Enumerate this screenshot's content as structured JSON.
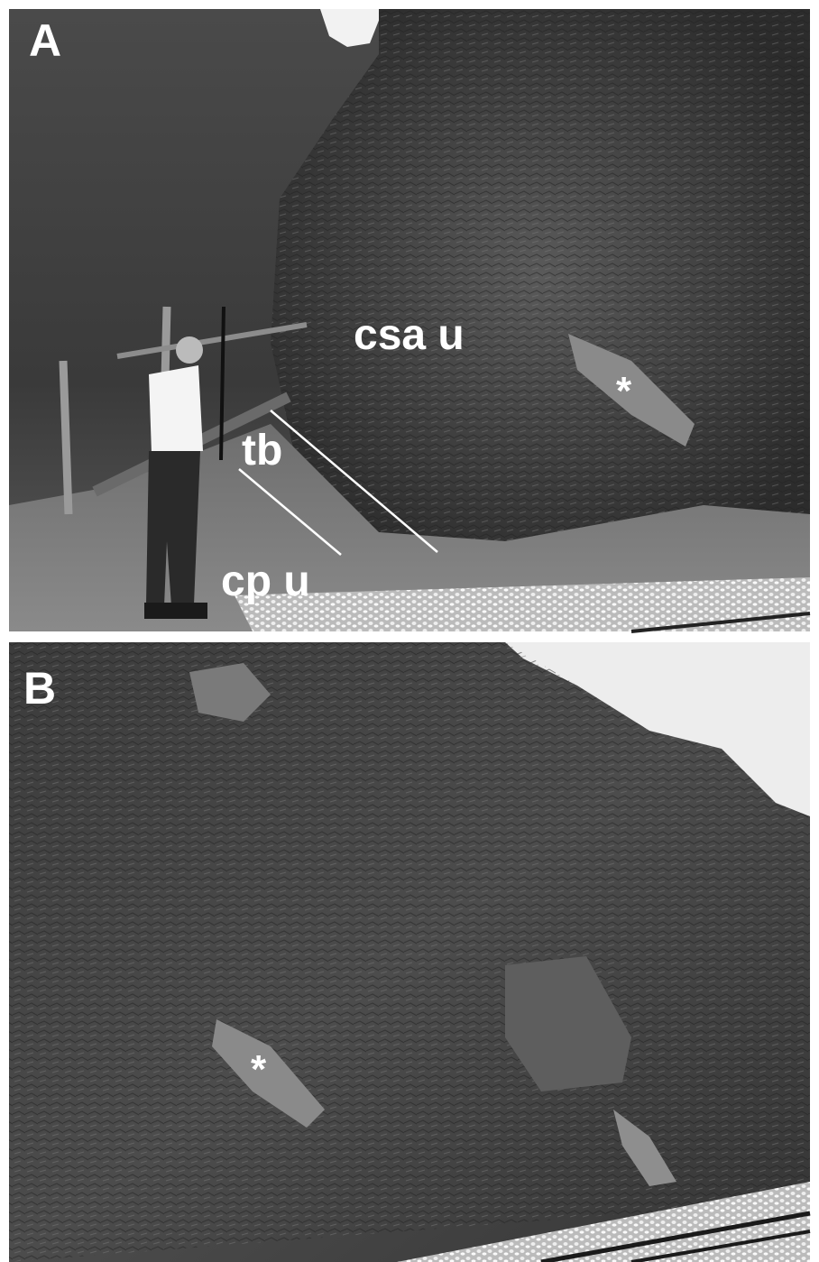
{
  "panels": [
    {
      "label": "A",
      "annotations": [
        "csa u",
        "tb",
        "cp u",
        "*"
      ]
    },
    {
      "label": "B",
      "annotations": [
        "*"
      ]
    }
  ]
}
